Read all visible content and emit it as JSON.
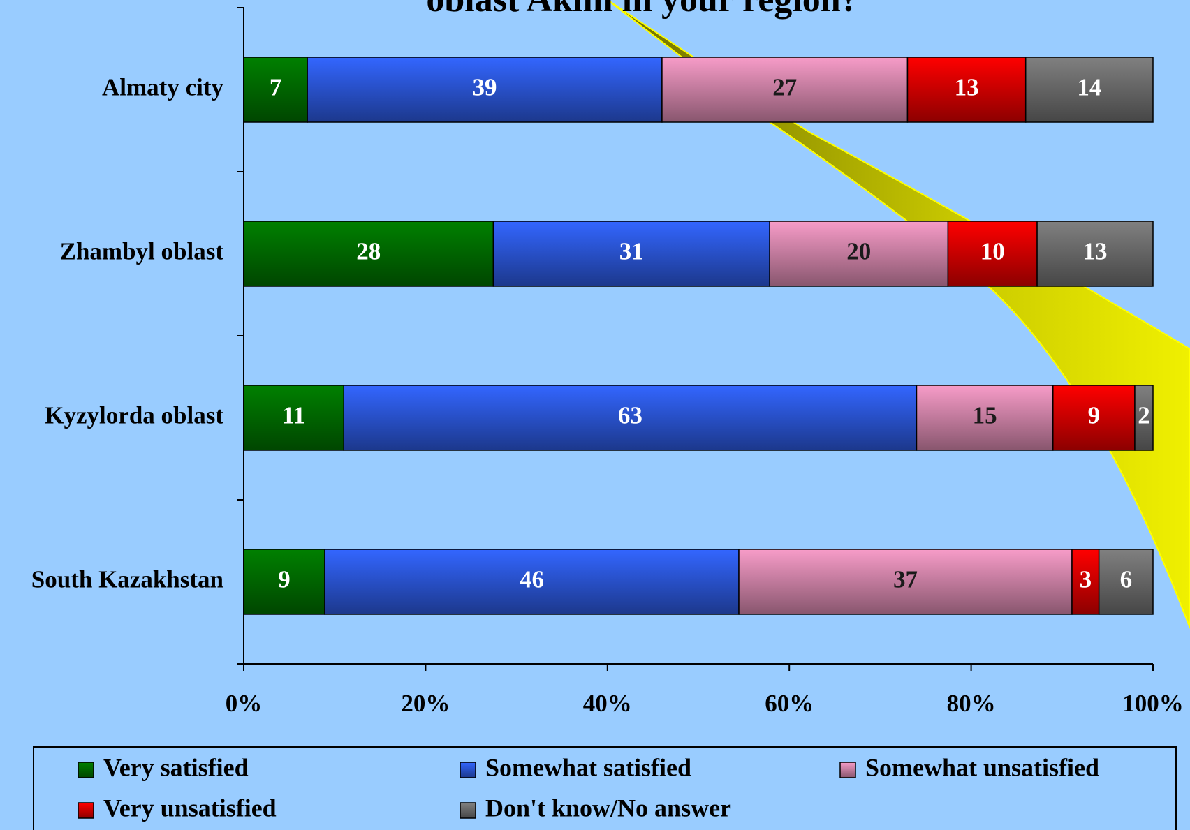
{
  "chart_data": {
    "type": "bar",
    "orientation": "horizontal",
    "stacking": "percent",
    "title": "oblast Akim in your region?",
    "categories": [
      "Almaty city",
      "Zhambyl oblast",
      "Kyzylorda oblast",
      "South Kazakhstan"
    ],
    "series": [
      {
        "name": "Very satisfied",
        "color": "#008000",
        "label_color": "#ffffff",
        "values": [
          7,
          28,
          11,
          9
        ]
      },
      {
        "name": "Somewhat satisfied",
        "color": "#3366ff",
        "label_color": "#ffffff",
        "values": [
          39,
          31,
          63,
          46
        ]
      },
      {
        "name": "Somewhat unsatisfied",
        "color": "#f79cc8",
        "label_color": "#1a1a1a",
        "values": [
          27,
          20,
          15,
          37
        ]
      },
      {
        "name": "Very unsatisfied",
        "color": "#ff0000",
        "label_color": "#ffffff",
        "values": [
          13,
          10,
          9,
          3
        ]
      },
      {
        "name": "Don't know/No answer",
        "color": "#808080",
        "label_color": "#ffffff",
        "values": [
          14,
          13,
          2,
          6
        ]
      }
    ],
    "xlim": [
      0,
      100
    ],
    "xticks": [
      {
        "value": 0,
        "label": "0%"
      },
      {
        "value": 20,
        "label": "20%"
      },
      {
        "value": 40,
        "label": "40%"
      },
      {
        "value": 60,
        "label": "60%"
      },
      {
        "value": 80,
        "label": "80%"
      },
      {
        "value": 100,
        "label": "100%"
      }
    ],
    "legend": "bottom"
  }
}
